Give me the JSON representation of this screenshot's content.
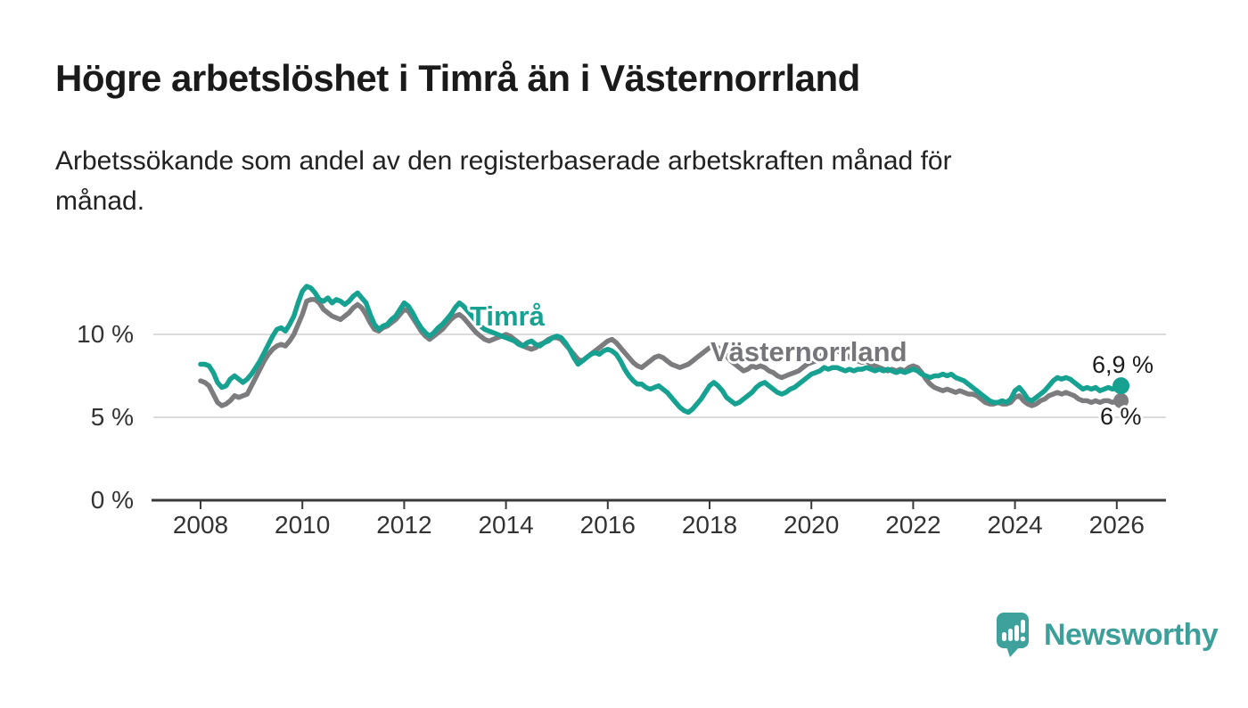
{
  "header": {
    "title": "Högre arbetslöshet i Timrå än i Västernorrland",
    "subtitle": "Arbetssökande som andel av den registerbaserade arbetskraften månad för månad."
  },
  "chart_data": {
    "type": "line",
    "title": "Högre arbetslöshet i Timrå än i Västernorrland",
    "subtitle": "Arbetssökande som andel av den registerbaserade arbetskraften månad för månad.",
    "unit": "%",
    "x_start_year": 2008,
    "x_step_months": 1,
    "x_axis_ticks": [
      2008,
      2010,
      2012,
      2014,
      2016,
      2018,
      2020,
      2022,
      2024,
      2026
    ],
    "y_axis_ticks": [
      {
        "value": 0,
        "label": "0 %"
      },
      {
        "value": 5,
        "label": "5 %"
      },
      {
        "value": 10,
        "label": "10 %"
      }
    ],
    "ylim": [
      0,
      14
    ],
    "grid": "horizontal",
    "colors": {
      "timra": "#16a191",
      "vasternorrland": "#7c7c7f",
      "grid": "#dcdcdc",
      "axis": "#3a3a3a"
    },
    "series": [
      {
        "name": "Västernorrland",
        "color": "#7c7c7f",
        "end_label": "6 %",
        "end_value": 6.0,
        "values": [
          7.2,
          7.1,
          6.9,
          6.4,
          5.9,
          5.7,
          5.8,
          6.0,
          6.3,
          6.2,
          6.3,
          6.4,
          6.9,
          7.4,
          7.9,
          8.4,
          8.8,
          9.1,
          9.3,
          9.4,
          9.3,
          9.6,
          10.0,
          10.6,
          11.2,
          12.0,
          12.1,
          12.1,
          11.9,
          11.5,
          11.3,
          11.1,
          11.0,
          10.9,
          11.1,
          11.3,
          11.6,
          11.8,
          11.6,
          11.2,
          10.7,
          10.3,
          10.2,
          10.4,
          10.5,
          10.7,
          10.9,
          11.2,
          11.5,
          11.4,
          11.0,
          10.6,
          10.2,
          9.9,
          9.7,
          9.9,
          10.1,
          10.3,
          10.6,
          10.9,
          11.1,
          11.2,
          11.0,
          10.7,
          10.4,
          10.1,
          9.9,
          9.7,
          9.6,
          9.7,
          9.8,
          9.9,
          10.0,
          9.9,
          9.7,
          9.5,
          9.3,
          9.2,
          9.1,
          9.2,
          9.4,
          9.5,
          9.7,
          9.8,
          9.8,
          9.7,
          9.4,
          9.1,
          8.8,
          8.5,
          8.4,
          8.6,
          8.8,
          9.0,
          9.2,
          9.4,
          9.6,
          9.7,
          9.5,
          9.2,
          8.9,
          8.6,
          8.3,
          8.1,
          8.0,
          8.2,
          8.4,
          8.6,
          8.7,
          8.6,
          8.4,
          8.2,
          8.1,
          8.0,
          8.1,
          8.2,
          8.4,
          8.6,
          8.8,
          9.0,
          9.2,
          9.3,
          9.2,
          9.0,
          8.7,
          8.4,
          8.2,
          8.0,
          7.8,
          7.9,
          8.1,
          8.0,
          8.1,
          8.0,
          7.8,
          7.7,
          7.5,
          7.4,
          7.5,
          7.6,
          7.7,
          7.8,
          8.0,
          8.2,
          8.3,
          8.4,
          8.6,
          8.9,
          9.0,
          9.1,
          9.0,
          8.9,
          8.8,
          8.6,
          8.5,
          8.4,
          8.3,
          8.4,
          8.2,
          8.1,
          8.0,
          7.9,
          7.8,
          7.9,
          7.8,
          7.9,
          7.8,
          8.0,
          8.1,
          8.0,
          7.7,
          7.3,
          7.0,
          6.8,
          6.7,
          6.6,
          6.7,
          6.6,
          6.5,
          6.6,
          6.5,
          6.4,
          6.4,
          6.3,
          6.1,
          5.9,
          5.8,
          5.8,
          5.9,
          5.8,
          5.8,
          5.9,
          6.2,
          6.3,
          6.0,
          5.8,
          5.7,
          5.8,
          6.0,
          6.1,
          6.3,
          6.4,
          6.5,
          6.4,
          6.5,
          6.4,
          6.3,
          6.1,
          6.0,
          6.0,
          5.9,
          6.0,
          5.9,
          6.0,
          6.0,
          5.9,
          6.0,
          6.0
        ]
      },
      {
        "name": "Timrå",
        "color": "#16a191",
        "end_label": "6,9 %",
        "end_value": 6.9,
        "values": [
          8.2,
          8.2,
          8.1,
          7.7,
          7.1,
          6.8,
          6.9,
          7.3,
          7.5,
          7.3,
          7.1,
          7.3,
          7.6,
          8.0,
          8.4,
          8.9,
          9.4,
          9.9,
          10.3,
          10.4,
          10.2,
          10.6,
          11.1,
          11.9,
          12.6,
          12.9,
          12.8,
          12.5,
          12.1,
          12.0,
          12.2,
          11.9,
          12.1,
          12.0,
          11.8,
          12.0,
          12.3,
          12.5,
          12.2,
          11.9,
          11.2,
          10.6,
          10.3,
          10.5,
          10.6,
          10.9,
          11.1,
          11.5,
          11.9,
          11.7,
          11.3,
          10.8,
          10.4,
          10.1,
          9.9,
          10.1,
          10.4,
          10.6,
          10.9,
          11.2,
          11.6,
          11.9,
          11.7,
          11.4,
          11.1,
          10.8,
          10.5,
          10.3,
          10.2,
          10.1,
          10.0,
          9.9,
          9.8,
          9.7,
          9.6,
          9.4,
          9.3,
          9.5,
          9.6,
          9.4,
          9.3,
          9.5,
          9.6,
          9.8,
          9.9,
          9.8,
          9.5,
          9.1,
          8.6,
          8.2,
          8.4,
          8.6,
          8.8,
          8.9,
          8.8,
          9.0,
          9.1,
          9.0,
          8.8,
          8.4,
          7.9,
          7.5,
          7.2,
          7.0,
          7.0,
          6.8,
          6.7,
          6.8,
          6.9,
          6.7,
          6.5,
          6.2,
          5.9,
          5.6,
          5.4,
          5.3,
          5.5,
          5.8,
          6.1,
          6.5,
          6.9,
          7.1,
          6.9,
          6.6,
          6.2,
          6.0,
          5.8,
          5.9,
          6.1,
          6.3,
          6.5,
          6.8,
          7.0,
          7.1,
          6.9,
          6.7,
          6.5,
          6.4,
          6.5,
          6.7,
          6.8,
          7.0,
          7.2,
          7.4,
          7.6,
          7.7,
          7.8,
          8.0,
          7.9,
          8.0,
          8.0,
          7.9,
          7.8,
          7.9,
          7.8,
          7.9,
          7.9,
          8.0,
          7.9,
          7.8,
          7.9,
          7.8,
          7.9,
          7.8,
          7.7,
          7.8,
          7.7,
          7.8,
          7.9,
          7.8,
          7.6,
          7.5,
          7.4,
          7.5,
          7.5,
          7.6,
          7.5,
          7.6,
          7.4,
          7.3,
          7.2,
          7.0,
          6.8,
          6.6,
          6.4,
          6.2,
          6.0,
          5.9,
          5.9,
          6.0,
          5.9,
          6.1,
          6.6,
          6.8,
          6.5,
          6.1,
          6.0,
          6.2,
          6.4,
          6.6,
          6.9,
          7.2,
          7.4,
          7.3,
          7.4,
          7.3,
          7.1,
          6.9,
          6.7,
          6.8,
          6.7,
          6.8,
          6.6,
          6.7,
          6.8,
          6.7,
          6.8,
          6.9
        ]
      }
    ]
  },
  "footer": {
    "brand": "Newsworthy",
    "logo_icon": "bar-chart-speech-bubble-icon"
  }
}
